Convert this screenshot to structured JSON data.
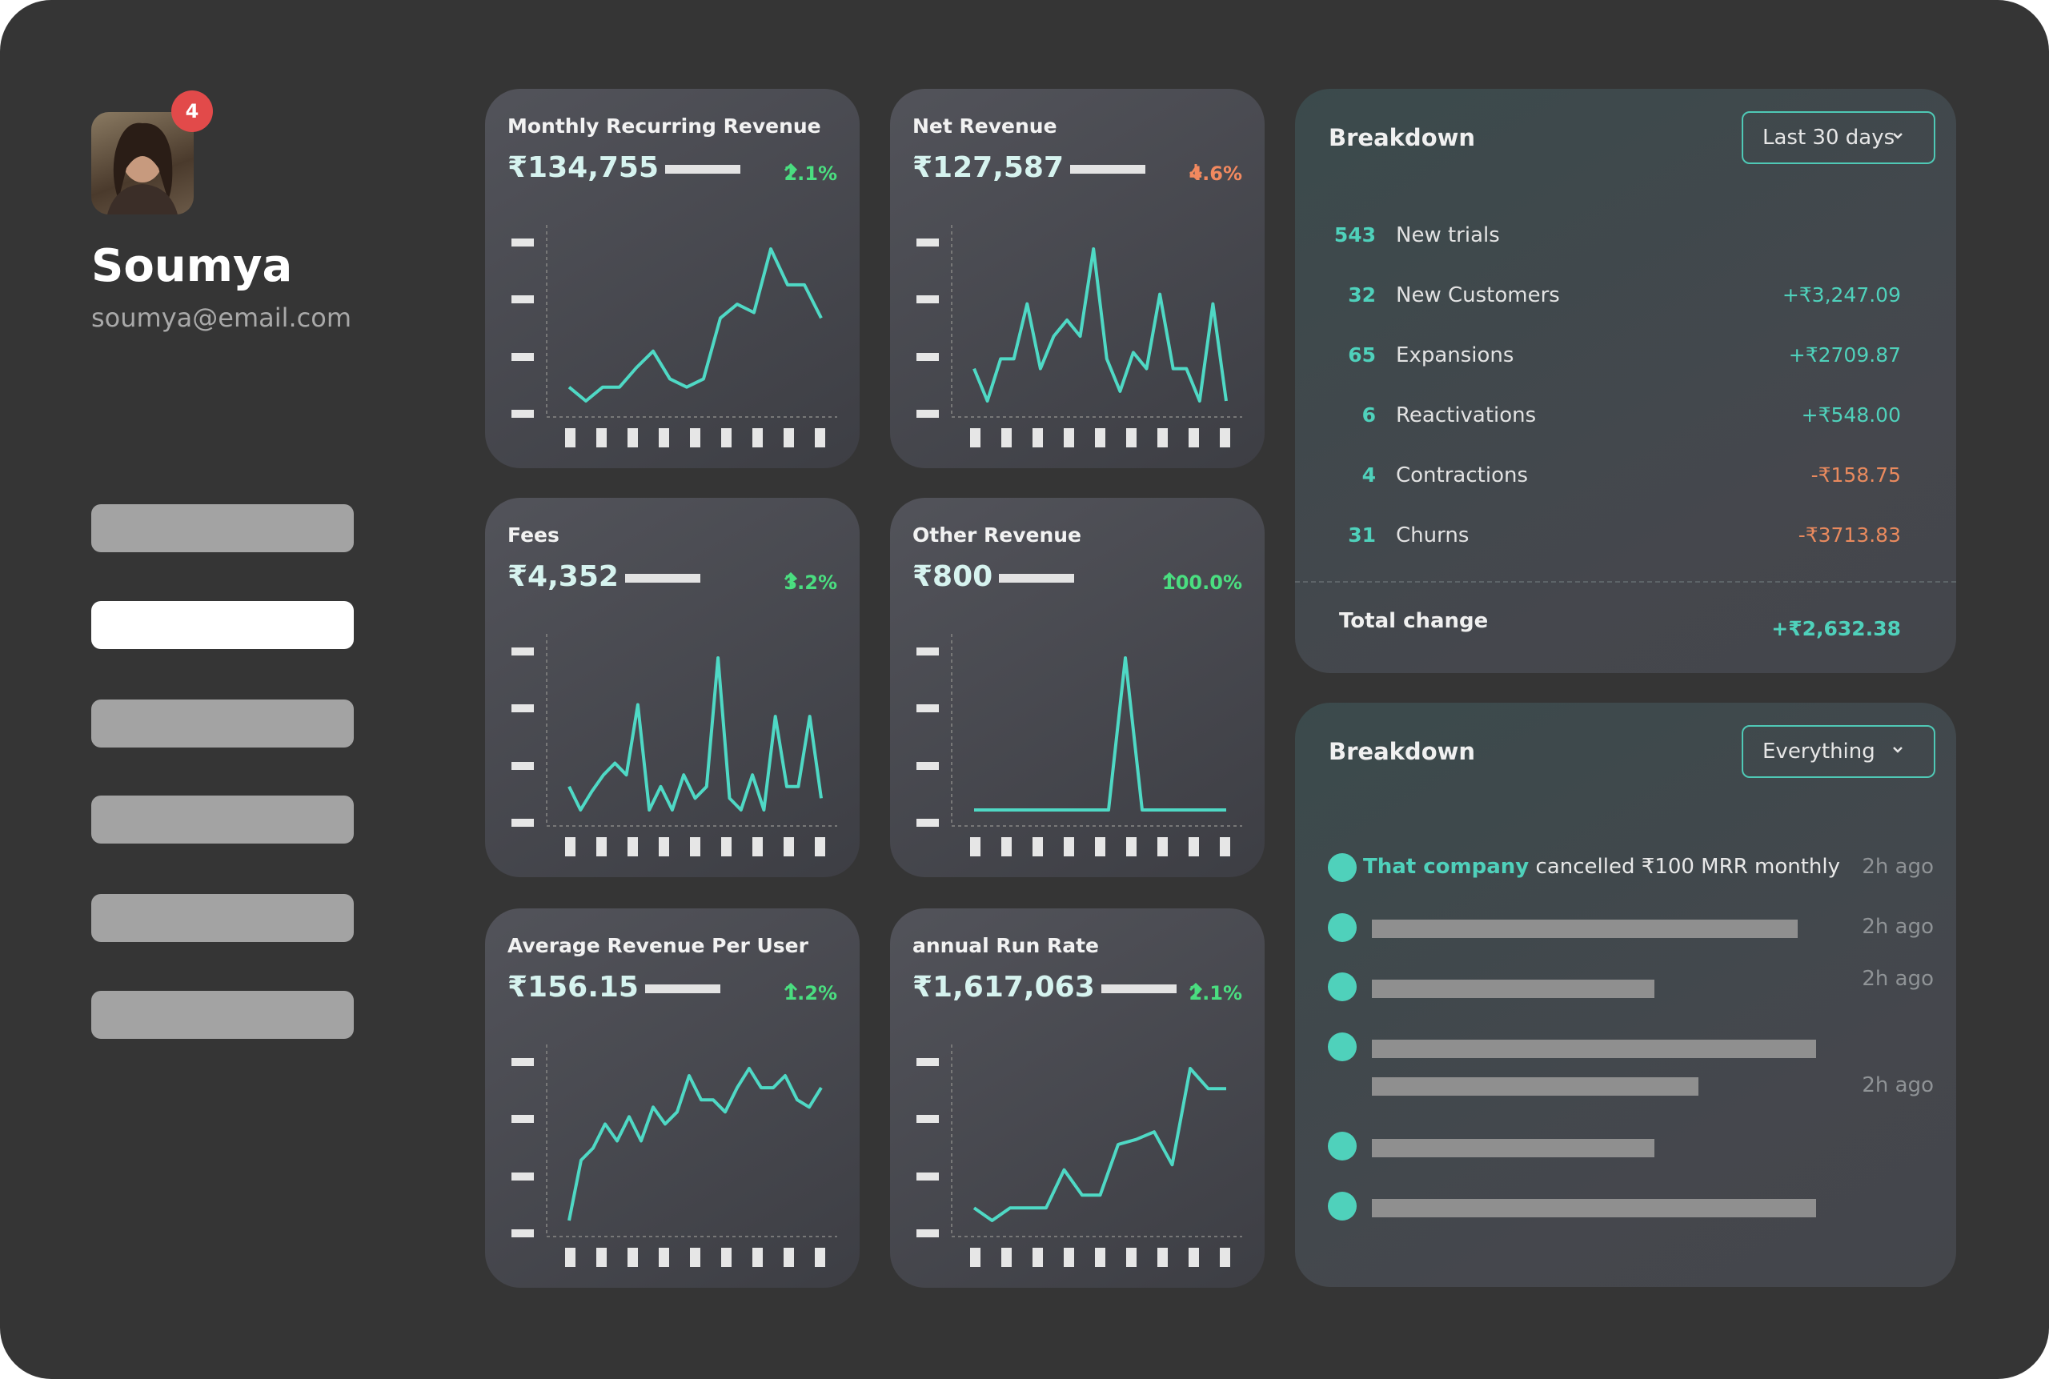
{
  "profile": {
    "name": "Soumya",
    "email": "soumya@email.com",
    "notifications": 4
  },
  "metrics": [
    {
      "title": "Monthly Recurring Revenue",
      "value": "₹134,755",
      "change": "2.1%",
      "trend": "up",
      "spark": [
        25,
        20,
        25,
        25,
        32,
        38,
        28,
        25,
        28,
        50,
        55,
        52,
        75,
        62,
        62,
        50
      ]
    },
    {
      "title": "Net Revenue",
      "value": "₹127,587",
      "change": "4.6%",
      "trend": "down",
      "spark": [
        15,
        5,
        18,
        18,
        35,
        15,
        25,
        30,
        25,
        52,
        18,
        8,
        20,
        15,
        38,
        15,
        15,
        5,
        35,
        5
      ]
    },
    {
      "title": "Fees",
      "value": "₹4,352",
      "change": "3.2%",
      "trend": "up",
      "spark": [
        20,
        10,
        18,
        25,
        30,
        25,
        55,
        10,
        20,
        10,
        25,
        15,
        20,
        75,
        15,
        10,
        25,
        10,
        50,
        20,
        20,
        50,
        15
      ]
    },
    {
      "title": "Other Revenue",
      "value": "₹800",
      "change": "100.0%",
      "trend": "up",
      "spark": [
        0,
        0,
        0,
        0,
        0,
        0,
        0,
        0,
        0,
        100,
        0,
        0,
        0,
        0,
        0,
        0
      ]
    },
    {
      "title": "Average Revenue Per User",
      "value": "₹156.15",
      "change": "1.2%",
      "trend": "up",
      "spark": [
        5,
        30,
        35,
        45,
        38,
        48,
        38,
        52,
        45,
        50,
        65,
        55,
        55,
        50,
        60,
        68,
        60,
        60,
        65,
        55,
        52,
        60
      ]
    },
    {
      "title": "annual Run Rate",
      "value": "₹1,617,063",
      "change": "2.1%",
      "trend": "up",
      "spark": [
        15,
        10,
        15,
        15,
        15,
        30,
        20,
        20,
        40,
        42,
        45,
        32,
        70,
        62,
        62
      ]
    }
  ],
  "breakdown": {
    "title": "Breakdown",
    "range": "Last 30 days",
    "rows": [
      {
        "count": 543,
        "label": "New trials"
      },
      {
        "count": 32,
        "label": "New Customers",
        "amount": "+₹3,247.09"
      },
      {
        "count": 65,
        "label": "Expansions",
        "amount": "+₹2709.87"
      },
      {
        "count": 6,
        "label": "Reactivations",
        "amount": "+₹548.00"
      },
      {
        "count": 4,
        "label": "Contractions",
        "amount": "-₹158.75"
      },
      {
        "count": 31,
        "label": "Churns",
        "amount": "-₹3713.83"
      }
    ],
    "total_label": "Total change",
    "total": "+₹2,632.38"
  },
  "activity": {
    "title": "Breakdown",
    "filter": "Everything",
    "items": [
      {
        "company": "That company",
        "text": "cancelled ₹100 MRR monthly",
        "time": "2h ago"
      },
      {
        "time": "2h ago"
      },
      {
        "time": "2h ago"
      },
      {
        "time": "2h ago"
      },
      {},
      {}
    ]
  }
}
